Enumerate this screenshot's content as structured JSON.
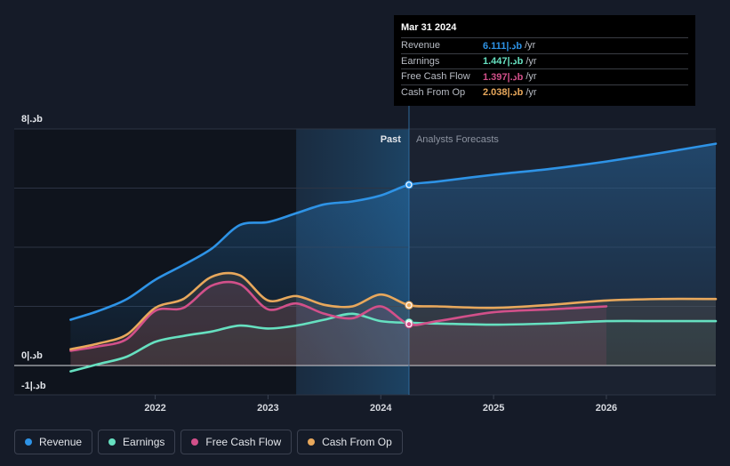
{
  "chart_data": {
    "type": "line",
    "y_axis_labels": {
      "top": "8|.دb",
      "zero": "0|.دb",
      "bottom": "-1|.دb"
    },
    "ylim": [
      -1,
      8
    ],
    "x_ticks": [
      {
        "label": "2022",
        "value": 2022
      },
      {
        "label": "2023",
        "value": 2023
      },
      {
        "label": "2024",
        "value": 2024
      },
      {
        "label": "2025",
        "value": 2025
      },
      {
        "label": "2026",
        "value": 2026
      }
    ],
    "xlim": [
      2020.75,
      2026.97
    ],
    "past_label": "Past",
    "forecast_label": "Analysts Forecasts",
    "divider_x": 2024.25,
    "highlight_start": 2023.25,
    "series": [
      {
        "name": "Revenue",
        "color": "#2e93e6",
        "points": [
          [
            2021.25,
            1.55
          ],
          [
            2021.5,
            1.85
          ],
          [
            2021.75,
            2.25
          ],
          [
            2022.0,
            2.9
          ],
          [
            2022.25,
            3.4
          ],
          [
            2022.5,
            3.95
          ],
          [
            2022.75,
            4.75
          ],
          [
            2023.0,
            4.85
          ],
          [
            2023.25,
            5.15
          ],
          [
            2023.5,
            5.45
          ],
          [
            2023.75,
            5.55
          ],
          [
            2024.0,
            5.75
          ],
          [
            2024.25,
            6.111
          ],
          [
            2024.5,
            6.22
          ],
          [
            2025.0,
            6.45
          ],
          [
            2025.5,
            6.65
          ],
          [
            2026.0,
            6.9
          ],
          [
            2026.5,
            7.2
          ],
          [
            2026.97,
            7.5
          ]
        ]
      },
      {
        "name": "Earnings",
        "color": "#66e0c0",
        "points": [
          [
            2021.25,
            -0.2
          ],
          [
            2021.5,
            0.05
          ],
          [
            2021.75,
            0.3
          ],
          [
            2022.0,
            0.8
          ],
          [
            2022.25,
            1.0
          ],
          [
            2022.5,
            1.15
          ],
          [
            2022.75,
            1.35
          ],
          [
            2023.0,
            1.25
          ],
          [
            2023.25,
            1.35
          ],
          [
            2023.5,
            1.55
          ],
          [
            2023.75,
            1.75
          ],
          [
            2024.0,
            1.5
          ],
          [
            2024.25,
            1.447
          ],
          [
            2024.5,
            1.42
          ],
          [
            2025.0,
            1.38
          ],
          [
            2025.5,
            1.42
          ],
          [
            2026.0,
            1.5
          ],
          [
            2026.5,
            1.5
          ],
          [
            2026.97,
            1.5
          ]
        ]
      },
      {
        "name": "Free Cash Flow",
        "color": "#d2508a",
        "points": [
          [
            2021.25,
            0.5
          ],
          [
            2021.5,
            0.65
          ],
          [
            2021.75,
            0.9
          ],
          [
            2022.0,
            1.85
          ],
          [
            2022.25,
            1.95
          ],
          [
            2022.5,
            2.7
          ],
          [
            2022.75,
            2.75
          ],
          [
            2023.0,
            1.9
          ],
          [
            2023.25,
            2.1
          ],
          [
            2023.5,
            1.75
          ],
          [
            2023.75,
            1.6
          ],
          [
            2024.0,
            2.0
          ],
          [
            2024.25,
            1.397
          ],
          [
            2024.5,
            1.5
          ],
          [
            2025.0,
            1.8
          ],
          [
            2025.5,
            1.9
          ],
          [
            2026.0,
            2.0
          ]
        ]
      },
      {
        "name": "Cash From Op",
        "color": "#e8a85c",
        "points": [
          [
            2021.25,
            0.55
          ],
          [
            2021.5,
            0.75
          ],
          [
            2021.75,
            1.05
          ],
          [
            2022.0,
            1.95
          ],
          [
            2022.25,
            2.25
          ],
          [
            2022.5,
            3.0
          ],
          [
            2022.75,
            3.05
          ],
          [
            2023.0,
            2.2
          ],
          [
            2023.25,
            2.35
          ],
          [
            2023.5,
            2.05
          ],
          [
            2023.75,
            2.0
          ],
          [
            2024.0,
            2.4
          ],
          [
            2024.25,
            2.038
          ],
          [
            2024.5,
            2.0
          ],
          [
            2025.0,
            1.95
          ],
          [
            2025.5,
            2.05
          ],
          [
            2026.0,
            2.2
          ],
          [
            2026.5,
            2.25
          ],
          [
            2026.97,
            2.25
          ]
        ]
      }
    ]
  },
  "tooltip": {
    "date": "Mar 31 2024",
    "rows": [
      {
        "label": "Revenue",
        "value": "6.111|.دb",
        "unit": "/yr",
        "color": "#2e93e6"
      },
      {
        "label": "Earnings",
        "value": "1.447|.دb",
        "unit": "/yr",
        "color": "#66e0c0"
      },
      {
        "label": "Free Cash Flow",
        "value": "1.397|.دb",
        "unit": "/yr",
        "color": "#d2508a"
      },
      {
        "label": "Cash From Op",
        "value": "2.038|.دb",
        "unit": "/yr",
        "color": "#e8a85c"
      }
    ]
  },
  "legend": [
    {
      "label": "Revenue",
      "color": "#2e93e6"
    },
    {
      "label": "Earnings",
      "color": "#66e0c0"
    },
    {
      "label": "Free Cash Flow",
      "color": "#d2508a"
    },
    {
      "label": "Cash From Op",
      "color": "#e8a85c"
    }
  ]
}
